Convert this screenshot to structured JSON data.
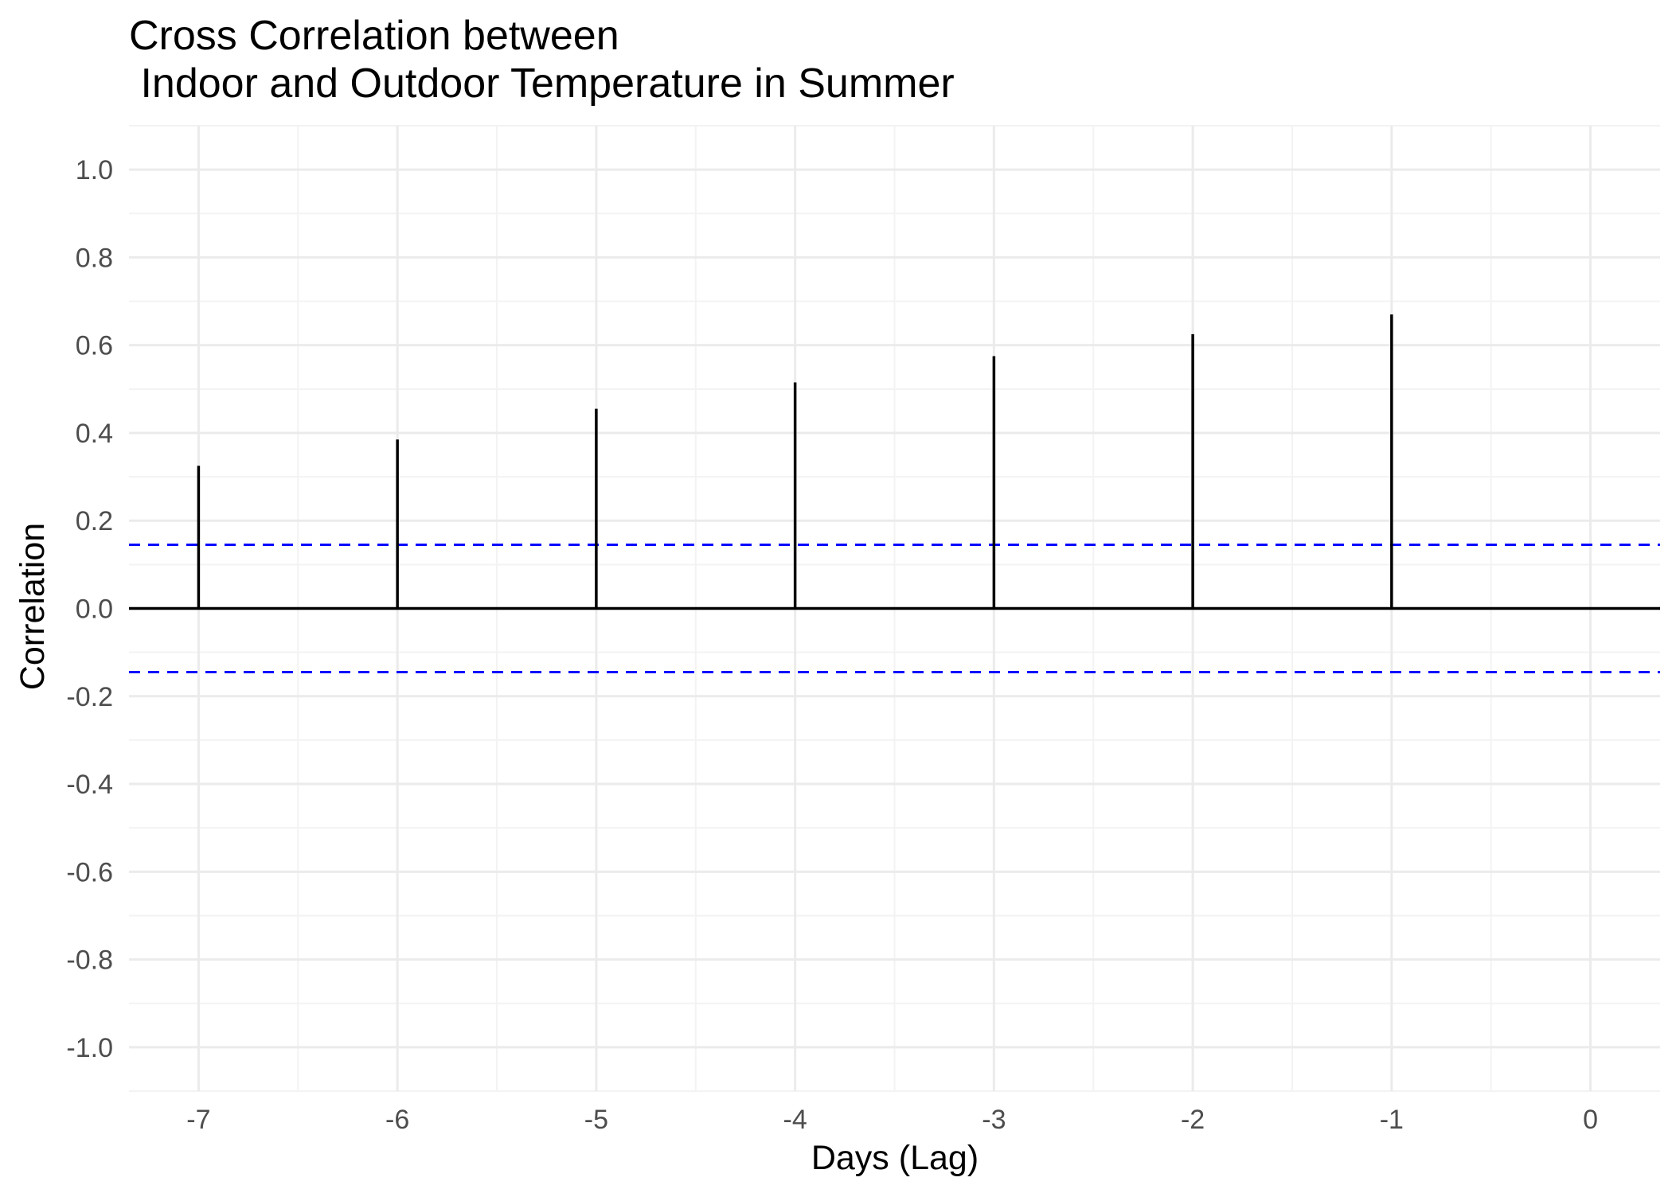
{
  "chart_data": {
    "type": "bar",
    "title_lines": [
      "Cross Correlation between",
      " Indoor and Outdoor Temperature in Summer"
    ],
    "xlabel": "Days (Lag)",
    "ylabel": "Correlation",
    "x": [
      -7,
      -6,
      -5,
      -4,
      -3,
      -2,
      -1,
      0
    ],
    "values": [
      0.325,
      0.385,
      0.455,
      0.515,
      0.575,
      0.625,
      0.67,
      0
    ],
    "xlim": [
      -7.35,
      0.35
    ],
    "ylim": [
      -1.1,
      1.1
    ],
    "x_ticks": [
      -7,
      -6,
      -5,
      -4,
      -3,
      -2,
      -1,
      0
    ],
    "x_tick_labels": [
      "-7",
      "-6",
      "-5",
      "-4",
      "-3",
      "-2",
      "-1",
      "0"
    ],
    "y_ticks": [
      1.0,
      0.8,
      0.6,
      0.4,
      0.2,
      0.0,
      -0.2,
      -0.4,
      -0.6,
      -0.8,
      -1.0
    ],
    "y_tick_labels": [
      "1.0",
      "0.8",
      "0.6",
      "0.4",
      "0.2",
      "0.0",
      "-0.2",
      "-0.4",
      "-0.6",
      "-0.8",
      "-1.0"
    ],
    "confidence_bounds": [
      0.145,
      -0.145
    ],
    "grid": true,
    "colors": {
      "bars": "#000000",
      "zero_line": "#000000",
      "confidence": "#0000ff",
      "grid_major": "#ebebeb",
      "grid_minor": "#f3f3f3"
    }
  }
}
